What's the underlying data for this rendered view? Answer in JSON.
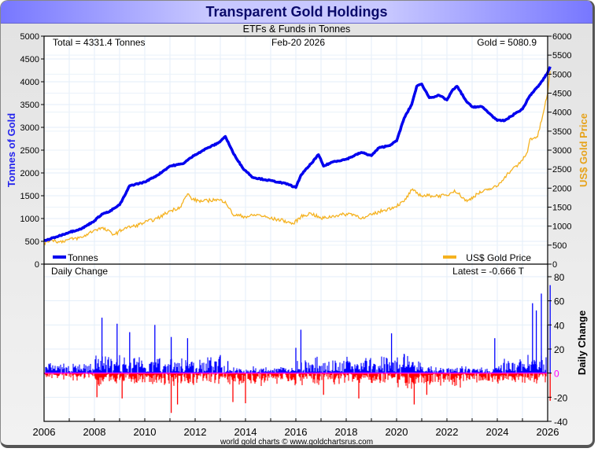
{
  "header": {
    "title": "Transparent Gold Holdings",
    "subtitle": "ETFs & Funds in Tonnes"
  },
  "footer": "world gold charts © www.goldchartsrus.com",
  "colors": {
    "tonnes": "#0000ee",
    "gold": "#f5b220",
    "positive": "#0000ff",
    "negative": "#ff0000",
    "zero_line": "#ff00ff",
    "left_axis_label": "#2222ee",
    "right_axis_label": "#e6a21a"
  },
  "chart_data": [
    {
      "type": "line",
      "title": "ETFs & Funds in Tonnes",
      "annotations": {
        "total": "Total = 4331.4 Tonnes",
        "date": "Feb-20  2026",
        "gold": "Gold = 5080.9"
      },
      "xlabel": "",
      "ylabel": "Tonnes of Gold",
      "y2label": "US$ Gold Price",
      "xlim": [
        2006,
        2026
      ],
      "ylim": [
        0,
        5000
      ],
      "y2lim": [
        0,
        6000
      ],
      "yticks": [
        "0",
        "500",
        "1000",
        "1500",
        "2000",
        "2500",
        "3000",
        "3500",
        "4000",
        "4500",
        "5000"
      ],
      "y2ticks": [
        "0",
        "500",
        "1000",
        "1500",
        "2000",
        "2500",
        "3000",
        "3500",
        "4000",
        "4500",
        "5000",
        "5500",
        "6000"
      ],
      "grid": true,
      "legend": [
        {
          "name": "Tonnes",
          "placement": "bottom-left"
        },
        {
          "name": "US$ Gold Price",
          "placement": "bottom-right"
        }
      ],
      "series": [
        {
          "name": "Tonnes",
          "axis": "left",
          "x": [
            2006.0,
            2006.5,
            2007.0,
            2007.5,
            2008.0,
            2008.3,
            2008.6,
            2008.8,
            2009.0,
            2009.2,
            2009.4,
            2010.0,
            2010.5,
            2011.0,
            2011.5,
            2012.0,
            2012.5,
            2012.9,
            2013.2,
            2013.5,
            2013.9,
            2014.3,
            2014.8,
            2015.3,
            2015.7,
            2016.0,
            2016.2,
            2016.6,
            2016.9,
            2017.1,
            2017.5,
            2018.0,
            2018.6,
            2019.0,
            2019.3,
            2019.7,
            2020.0,
            2020.3,
            2020.6,
            2020.8,
            2021.0,
            2021.3,
            2021.7,
            2022.0,
            2022.2,
            2022.4,
            2022.8,
            2023.0,
            2023.4,
            2023.7,
            2024.0,
            2024.3,
            2024.7,
            2025.0,
            2025.3,
            2025.7,
            2026.0,
            2026.1
          ],
          "values": [
            510,
            600,
            700,
            780,
            950,
            1100,
            1150,
            1230,
            1300,
            1500,
            1720,
            1800,
            1950,
            2150,
            2200,
            2400,
            2550,
            2650,
            2800,
            2450,
            2100,
            1900,
            1850,
            1800,
            1750,
            1680,
            1950,
            2200,
            2400,
            2150,
            2250,
            2300,
            2450,
            2380,
            2550,
            2600,
            2700,
            3200,
            3500,
            3900,
            3950,
            3650,
            3700,
            3600,
            3800,
            3900,
            3550,
            3450,
            3450,
            3300,
            3150,
            3150,
            3300,
            3400,
            3700,
            3950,
            4200,
            4331.4
          ]
        },
        {
          "name": "US$ Gold Price",
          "axis": "right",
          "x": [
            2006.0,
            2006.3,
            2006.6,
            2007.0,
            2007.5,
            2008.0,
            2008.3,
            2008.8,
            2009.2,
            2009.6,
            2010.0,
            2010.5,
            2011.0,
            2011.4,
            2011.7,
            2011.9,
            2012.3,
            2012.8,
            2013.2,
            2013.5,
            2014.0,
            2014.5,
            2015.0,
            2015.5,
            2015.9,
            2016.2,
            2016.6,
            2017.0,
            2017.6,
            2018.2,
            2018.7,
            2019.0,
            2019.5,
            2019.9,
            2020.3,
            2020.6,
            2021.0,
            2021.4,
            2022.0,
            2022.3,
            2022.8,
            2023.2,
            2023.6,
            2024.0,
            2024.3,
            2024.6,
            2024.9,
            2025.2,
            2025.3,
            2025.6,
            2025.8,
            2026.0,
            2026.1
          ],
          "values": [
            550,
            650,
            580,
            650,
            700,
            900,
            950,
            780,
            950,
            1000,
            1100,
            1200,
            1400,
            1500,
            1850,
            1700,
            1650,
            1700,
            1650,
            1300,
            1250,
            1300,
            1200,
            1150,
            1060,
            1250,
            1340,
            1200,
            1280,
            1330,
            1200,
            1300,
            1420,
            1500,
            1650,
            1950,
            1800,
            1800,
            1800,
            1950,
            1650,
            1850,
            1950,
            2050,
            2300,
            2500,
            2650,
            2950,
            3300,
            3350,
            3900,
            4500,
            5080.9
          ]
        }
      ]
    },
    {
      "type": "bar",
      "title": "Daily Change",
      "annotation": "Latest = -0.666 T",
      "ylabel": "Daily Change",
      "xlim": [
        2006,
        2026
      ],
      "ylim": [
        -40,
        80
      ],
      "yticks": [
        "-40",
        "-20",
        "0",
        "20",
        "40",
        "60",
        "80"
      ],
      "xticks": [
        "2006",
        "2008",
        "2010",
        "2012",
        "2014",
        "2016",
        "2018",
        "2020",
        "2022",
        "2024",
        "2026"
      ],
      "grid": true,
      "notable_spikes": {
        "x": [
          2008.3,
          2008.9,
          2009.4,
          2010.4,
          2011.05,
          2011.7,
          2013.0,
          2013.3,
          2016.0,
          2016.2,
          2019.8,
          2020.3,
          2023.9,
          2025.4,
          2025.55,
          2025.75,
          2026.0,
          2026.1
        ],
        "values": [
          46,
          41,
          34,
          40,
          30,
          29,
          15,
          10,
          21,
          36,
          33,
          16,
          29,
          58,
          52,
          66,
          40,
          73
        ]
      },
      "notable_drops": {
        "x": [
          2008.1,
          2009.1,
          2011.05,
          2011.3,
          2013.5,
          2014.0,
          2017.1,
          2018.5,
          2020.7,
          2021.2,
          2026.1
        ],
        "values": [
          -20,
          -21,
          -33,
          -26,
          -24,
          -25,
          -18,
          -21,
          -26,
          -18,
          -23
        ]
      }
    }
  ]
}
